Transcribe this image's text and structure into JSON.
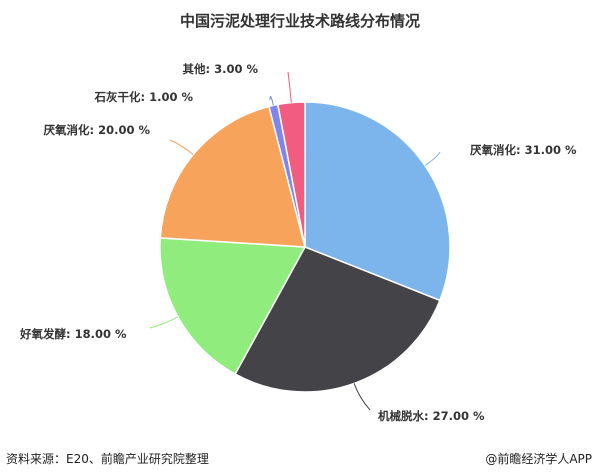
{
  "chart_data": {
    "type": "pie",
    "title": "中国污泥处理行业技术路线分布情况",
    "unit": "%",
    "start_angle": "top, clockwise",
    "slices": [
      {
        "name": "厌氧消化",
        "value": 31.0,
        "label": "厌氧消化: 31.00 %",
        "color": "#7cb5ec"
      },
      {
        "name": "机械脱水",
        "value": 27.0,
        "label": "机械脱水: 27.00 %",
        "color": "#434348"
      },
      {
        "name": "好氧发酵",
        "value": 18.0,
        "label": "好氧发酵: 18.00 %",
        "color": "#90ed7d"
      },
      {
        "name": "厌氧消化",
        "value": 20.0,
        "label": "厌氧消化: 20.00 %",
        "color": "#f7a35c"
      },
      {
        "name": "石灰干化",
        "value": 1.0,
        "label": "石灰干化: 1.00 %",
        "color": "#8085e9"
      },
      {
        "name": "其他",
        "value": 3.0,
        "label": "其他: 3.00 %",
        "color": "#f15c80"
      }
    ]
  },
  "footer": {
    "source": "资料来源：E20、前瞻产业研究院整理",
    "brand": "@前瞻经济学人APP"
  }
}
